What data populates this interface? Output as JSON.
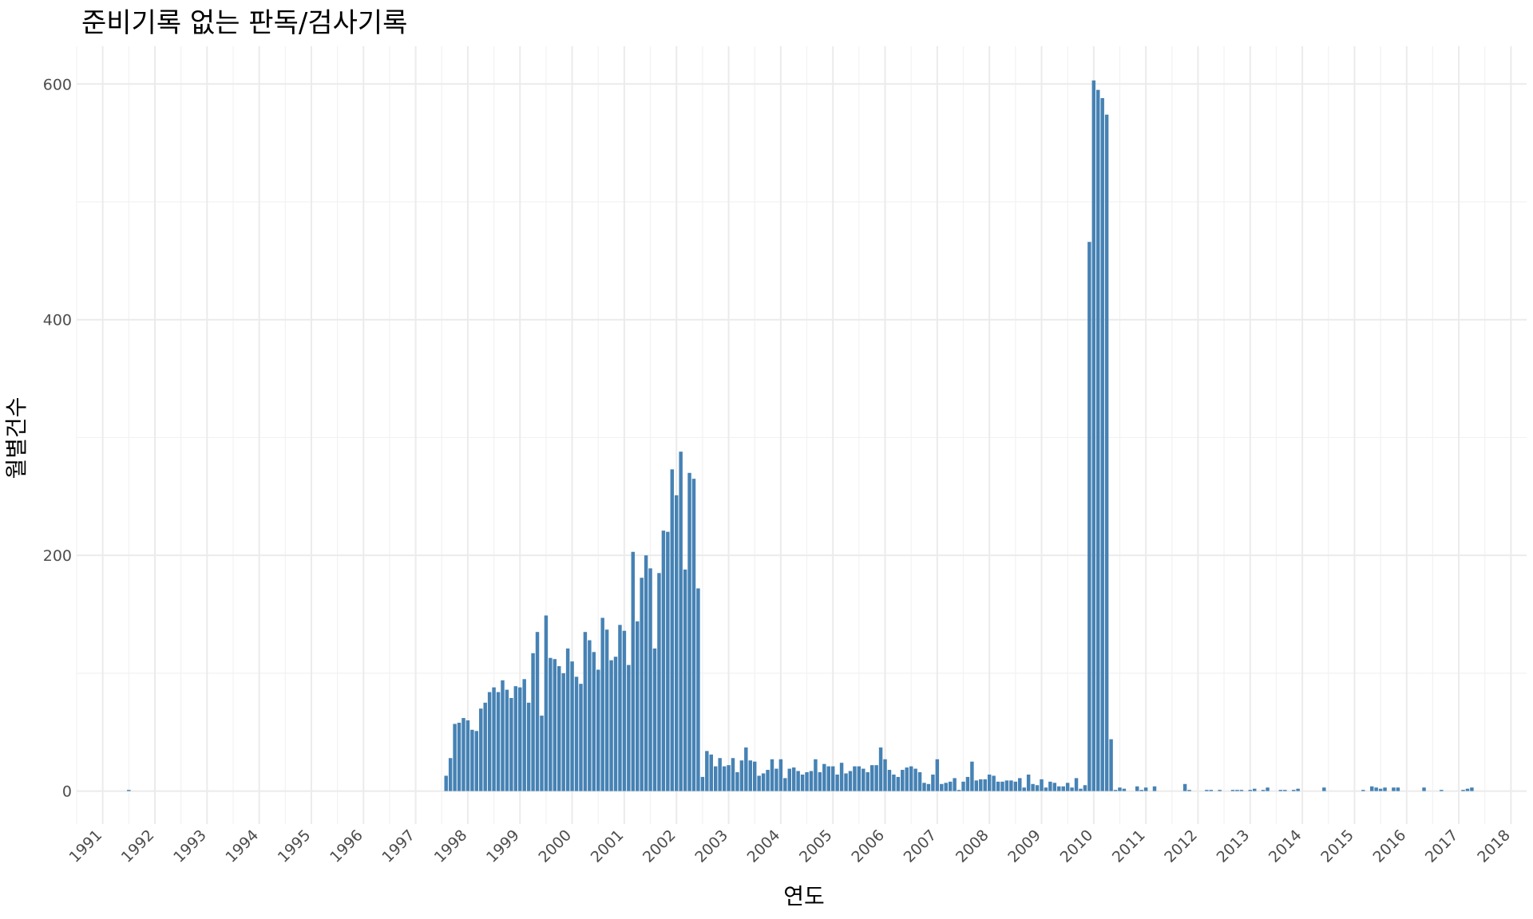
{
  "chart_data": {
    "type": "bar",
    "title": "준비기록 없는 판독/검사기록",
    "xlabel": "연도",
    "ylabel": "월별건수",
    "x_ticks": [
      "1991",
      "1992",
      "1993",
      "1994",
      "1995",
      "1996",
      "1997",
      "1998",
      "1999",
      "2000",
      "2001",
      "2002",
      "2003",
      "2004",
      "2005",
      "2006",
      "2007",
      "2008",
      "2009",
      "2010",
      "2011",
      "2012",
      "2013",
      "2014",
      "2015",
      "2016",
      "2017",
      "2018"
    ],
    "y_ticks": [
      0,
      200,
      400,
      600
    ],
    "xlim": [
      1990.5,
      2018.3
    ],
    "ylim": [
      -28,
      632
    ],
    "grid": true,
    "bar_color": "#4682b4",
    "series": [
      {
        "start": "1991-07",
        "values": [
          1
        ]
      },
      {
        "start": "1997-08",
        "values": [
          13,
          28,
          57,
          58,
          62,
          60,
          52,
          51,
          70,
          75,
          84,
          88,
          84,
          94,
          86,
          79,
          89,
          88,
          95,
          75,
          117,
          135,
          64,
          149,
          113,
          112,
          106,
          100,
          121,
          110,
          97,
          91,
          135,
          128,
          118,
          103,
          147,
          137,
          111,
          114,
          141,
          136,
          107,
          203,
          144,
          181,
          200,
          189,
          121,
          185,
          221,
          220,
          273,
          251,
          288,
          188,
          270,
          265,
          172,
          12,
          34,
          31,
          21,
          28,
          21,
          22,
          28,
          16,
          26,
          37,
          26,
          25,
          13,
          15,
          18,
          27,
          19,
          27,
          11,
          19,
          20,
          17,
          14,
          16,
          17,
          27,
          16,
          23,
          21,
          21,
          14,
          24,
          15,
          17,
          21,
          21,
          19,
          16,
          22,
          22,
          37,
          27,
          18,
          14,
          12,
          18,
          20,
          21,
          19,
          16,
          7,
          6,
          14,
          27,
          6,
          7,
          8,
          11,
          1,
          8,
          12,
          25,
          9,
          10,
          10,
          14,
          13,
          8,
          8,
          9,
          9,
          8,
          11,
          3,
          14,
          6,
          5,
          10,
          3,
          8,
          7,
          4,
          4,
          7,
          3,
          11,
          2,
          5,
          466,
          603,
          595,
          588,
          574,
          44
        ]
      },
      {
        "start": "2010-05",
        "values": [
          0,
          1,
          3,
          2,
          0,
          0,
          4,
          1,
          3,
          0,
          4,
          0,
          0,
          0,
          0,
          0,
          0,
          6,
          1,
          0,
          0,
          0,
          1,
          1,
          0,
          1,
          0,
          0,
          1,
          1,
          1,
          0,
          1,
          2,
          0,
          1,
          3,
          0,
          0,
          1,
          1,
          0,
          1,
          2,
          0,
          0,
          0,
          0,
          0,
          3,
          0,
          0,
          0,
          0,
          0,
          0,
          0,
          0,
          1,
          0,
          4,
          3,
          2,
          3,
          0,
          3,
          3,
          0,
          0,
          0,
          0,
          0,
          3,
          0,
          0,
          0,
          1,
          0,
          0,
          0,
          0,
          1,
          2,
          3
        ]
      }
    ]
  }
}
